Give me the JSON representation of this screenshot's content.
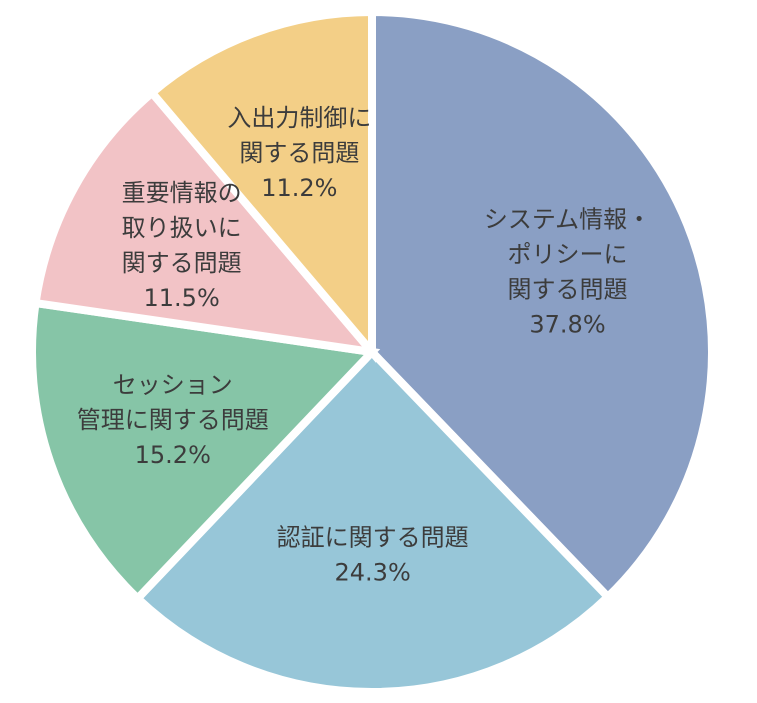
{
  "chart_data": {
    "type": "pie",
    "title": "",
    "legend": "none",
    "direction": "clockwise",
    "start": "12 o'clock",
    "slices": [
      {
        "label": [
          "システム情報・",
          "ポリシーに",
          "関する問題"
        ],
        "value": 37.8,
        "value_label": "37.8%",
        "color": "#8a9fc4"
      },
      {
        "label": [
          "認証に関する問題"
        ],
        "value": 24.3,
        "value_label": "24.3%",
        "color": "#97c6d8"
      },
      {
        "label": [
          "セッション",
          "管理に関する問題"
        ],
        "value": 15.2,
        "value_label": "15.2%",
        "color": "#86c5a7"
      },
      {
        "label": [
          "重要情報の",
          "取り扱いに",
          "関する問題"
        ],
        "value": 11.5,
        "value_label": "11.5%",
        "color": "#f2c3c6"
      },
      {
        "label": [
          "入出力制御に",
          "関する問題"
        ],
        "value": 11.2,
        "value_label": "11.2%",
        "color": "#f3cf87"
      }
    ]
  }
}
